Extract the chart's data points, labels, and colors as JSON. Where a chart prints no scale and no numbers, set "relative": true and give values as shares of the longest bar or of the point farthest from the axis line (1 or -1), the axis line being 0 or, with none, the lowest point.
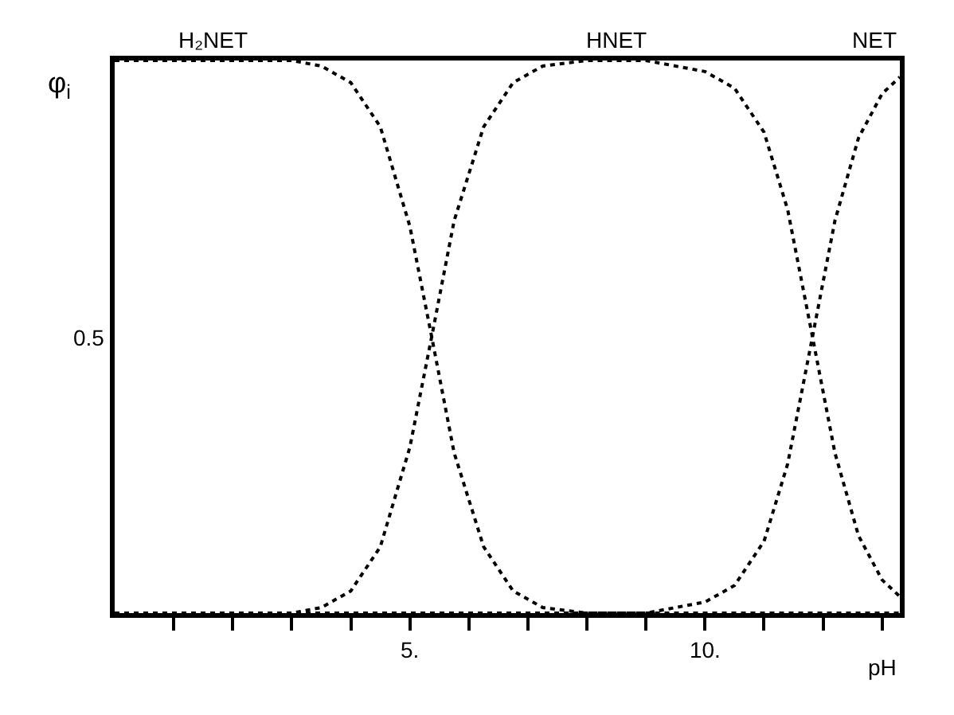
{
  "chart_data": {
    "type": "line",
    "relative": true,
    "xlabel": "pH",
    "ylabel": "φ$_{i}$",
    "x": [
      0,
      2,
      3,
      3.5,
      4,
      4.5,
      5,
      5.37,
      5.75,
      6.25,
      6.75,
      7.25,
      8,
      9,
      10,
      10.5,
      11,
      11.4,
      11.82,
      12.2,
      12.6,
      13,
      13.3
    ],
    "series": [
      {
        "name": "H₂NET",
        "color": "#000000",
        "values": [
          1,
          1,
          1,
          0.99,
          0.96,
          0.88,
          0.7,
          0.5,
          0.29,
          0.12,
          0.04,
          0.01,
          0,
          0,
          0,
          0,
          0,
          0,
          0,
          0,
          0,
          0,
          0
        ]
      },
      {
        "name": "HNET",
        "color": "#000000",
        "values": [
          0,
          0,
          0,
          0.01,
          0.04,
          0.12,
          0.3,
          0.5,
          0.71,
          0.88,
          0.96,
          0.99,
          1,
          1,
          0.98,
          0.95,
          0.87,
          0.73,
          0.5,
          0.29,
          0.14,
          0.06,
          0.03
        ]
      },
      {
        "name": "NET",
        "color": "#000000",
        "values": [
          0,
          0,
          0,
          0,
          0,
          0,
          0,
          0,
          0,
          0,
          0,
          0,
          0,
          0,
          0.02,
          0.05,
          0.13,
          0.27,
          0.5,
          0.71,
          0.86,
          0.94,
          0.97
        ]
      }
    ],
    "xlim": [
      0,
      13.3
    ],
    "xticks": [
      {
        "value": 1,
        "label": null
      },
      {
        "value": 2,
        "label": null
      },
      {
        "value": 3,
        "label": null
      },
      {
        "value": 4,
        "label": null
      },
      {
        "value": 5,
        "label": "5."
      },
      {
        "value": 6,
        "label": null
      },
      {
        "value": 7,
        "label": null
      },
      {
        "value": 8,
        "label": null
      },
      {
        "value": 9,
        "label": null
      },
      {
        "value": 10,
        "label": "10."
      },
      {
        "value": 11,
        "label": null
      },
      {
        "value": 12,
        "label": null
      },
      {
        "value": 13,
        "label": null
      }
    ],
    "annotations": [
      "0.5"
    ],
    "grid": false,
    "legend": false,
    "marker": "none",
    "line_style": "dotted"
  }
}
